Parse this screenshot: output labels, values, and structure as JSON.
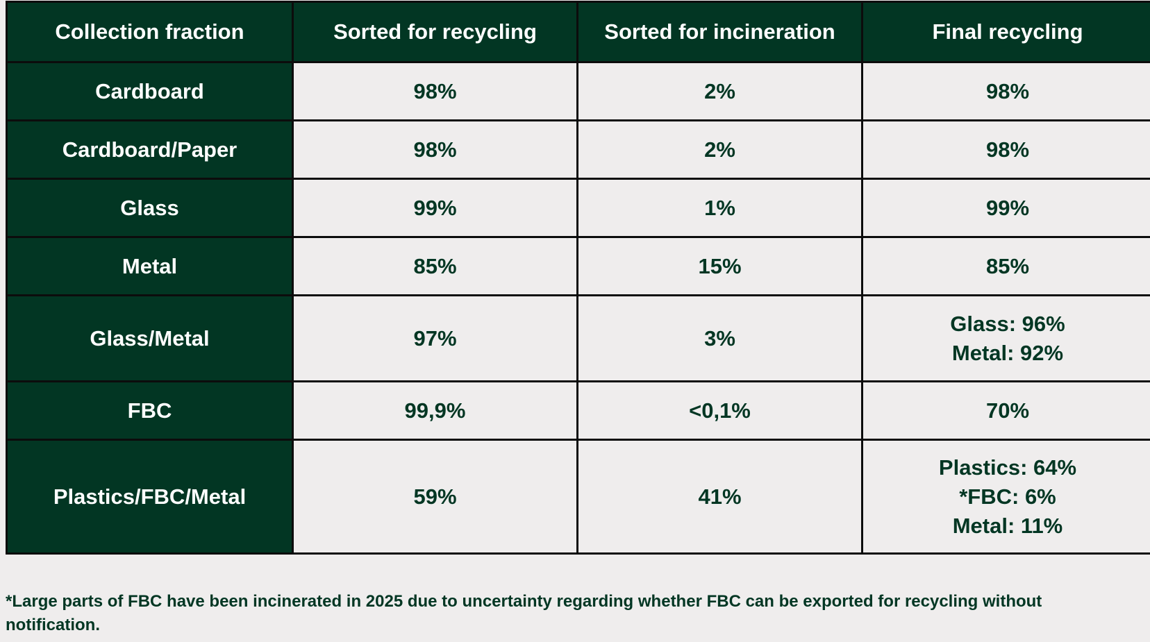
{
  "table": {
    "headers": [
      "Collection fraction",
      "Sorted for recycling",
      "Sorted for incineration",
      "Final recycling"
    ],
    "rows": [
      {
        "fraction": "Cardboard",
        "sorted_recycling": "98%",
        "sorted_incineration": "2%",
        "final_recycling": [
          "98%"
        ]
      },
      {
        "fraction": "Cardboard/Paper",
        "sorted_recycling": "98%",
        "sorted_incineration": "2%",
        "final_recycling": [
          "98%"
        ]
      },
      {
        "fraction": "Glass",
        "sorted_recycling": "99%",
        "sorted_incineration": "1%",
        "final_recycling": [
          "99%"
        ]
      },
      {
        "fraction": "Metal",
        "sorted_recycling": "85%",
        "sorted_incineration": "15%",
        "final_recycling": [
          "85%"
        ]
      },
      {
        "fraction": "Glass/Metal",
        "sorted_recycling": "97%",
        "sorted_incineration": "3%",
        "final_recycling": [
          "Glass: 96%",
          "Metal: 92%"
        ]
      },
      {
        "fraction": "FBC",
        "sorted_recycling": "99,9%",
        "sorted_incineration": "<0,1%",
        "final_recycling": [
          "70%"
        ]
      },
      {
        "fraction": "Plastics/FBC/Metal",
        "sorted_recycling": "59%",
        "sorted_incineration": "41%",
        "final_recycling": [
          "Plastics: 64%",
          "*FBC: 6%",
          "Metal: 11%"
        ]
      }
    ]
  },
  "footnote": "*Large parts of FBC have been incinerated in 2025 due to uncertainty regarding whether FBC can be exported for recycling without notification.",
  "colors": {
    "header_bg": "#023623",
    "value_text": "#023623",
    "cell_bg": "#efeded",
    "border": "#0c0c0c"
  }
}
